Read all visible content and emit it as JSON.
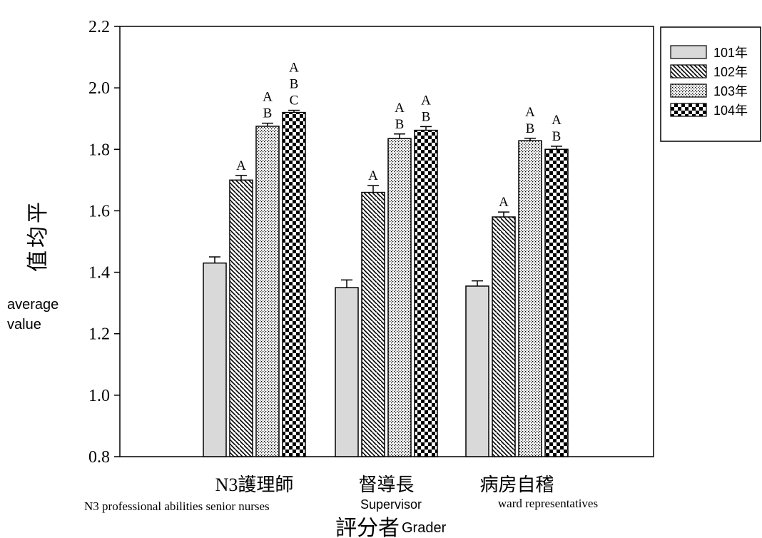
{
  "chart_data": {
    "type": "bar",
    "title": "",
    "xlabel": "評分者",
    "xlabel_en": "Grader",
    "ylabel": "平均值",
    "ylabel_en": [
      "average",
      "value"
    ],
    "ylim": [
      0.8,
      2.2
    ],
    "yticks": [
      "0.8",
      "1.0",
      "1.2",
      "1.4",
      "1.6",
      "1.8",
      "2.0",
      "2.2"
    ],
    "ytick_values": [
      0.8,
      1.0,
      1.2,
      1.4,
      1.6,
      1.8,
      2.0,
      2.2
    ],
    "grid": false,
    "legend_position": "top-right",
    "categories": [
      "N3護理師",
      "督導長",
      "病房自稽"
    ],
    "category_notes": [
      "N3 professional abilities senior nurses",
      "Supervisor",
      "ward representatives"
    ],
    "series": [
      {
        "name": "101年",
        "pattern": "solid",
        "color": "#d9d9d9",
        "values": [
          1.43,
          1.35,
          1.355
        ],
        "errors": [
          0.02,
          0.025,
          0.017
        ],
        "letters": [
          "",
          "",
          ""
        ]
      },
      {
        "name": "102年",
        "pattern": "diagonal",
        "color": "#000000",
        "values": [
          1.7,
          1.66,
          1.58
        ],
        "errors": [
          0.015,
          0.022,
          0.016
        ],
        "letters": [
          "A",
          "A",
          "A"
        ]
      },
      {
        "name": "103年",
        "pattern": "dots",
        "color": "#000000",
        "values": [
          1.875,
          1.835,
          1.828
        ],
        "errors": [
          0.01,
          0.015,
          0.008
        ],
        "letters": [
          "A\nB",
          "A\nB",
          "A\nB"
        ]
      },
      {
        "name": "104年",
        "pattern": "checker",
        "color": "#000000",
        "values": [
          1.92,
          1.862,
          1.8
        ],
        "errors": [
          0.007,
          0.012,
          0.01
        ],
        "letters": [
          "A\nB\nC",
          "A\nB",
          "A\nB"
        ]
      }
    ]
  }
}
